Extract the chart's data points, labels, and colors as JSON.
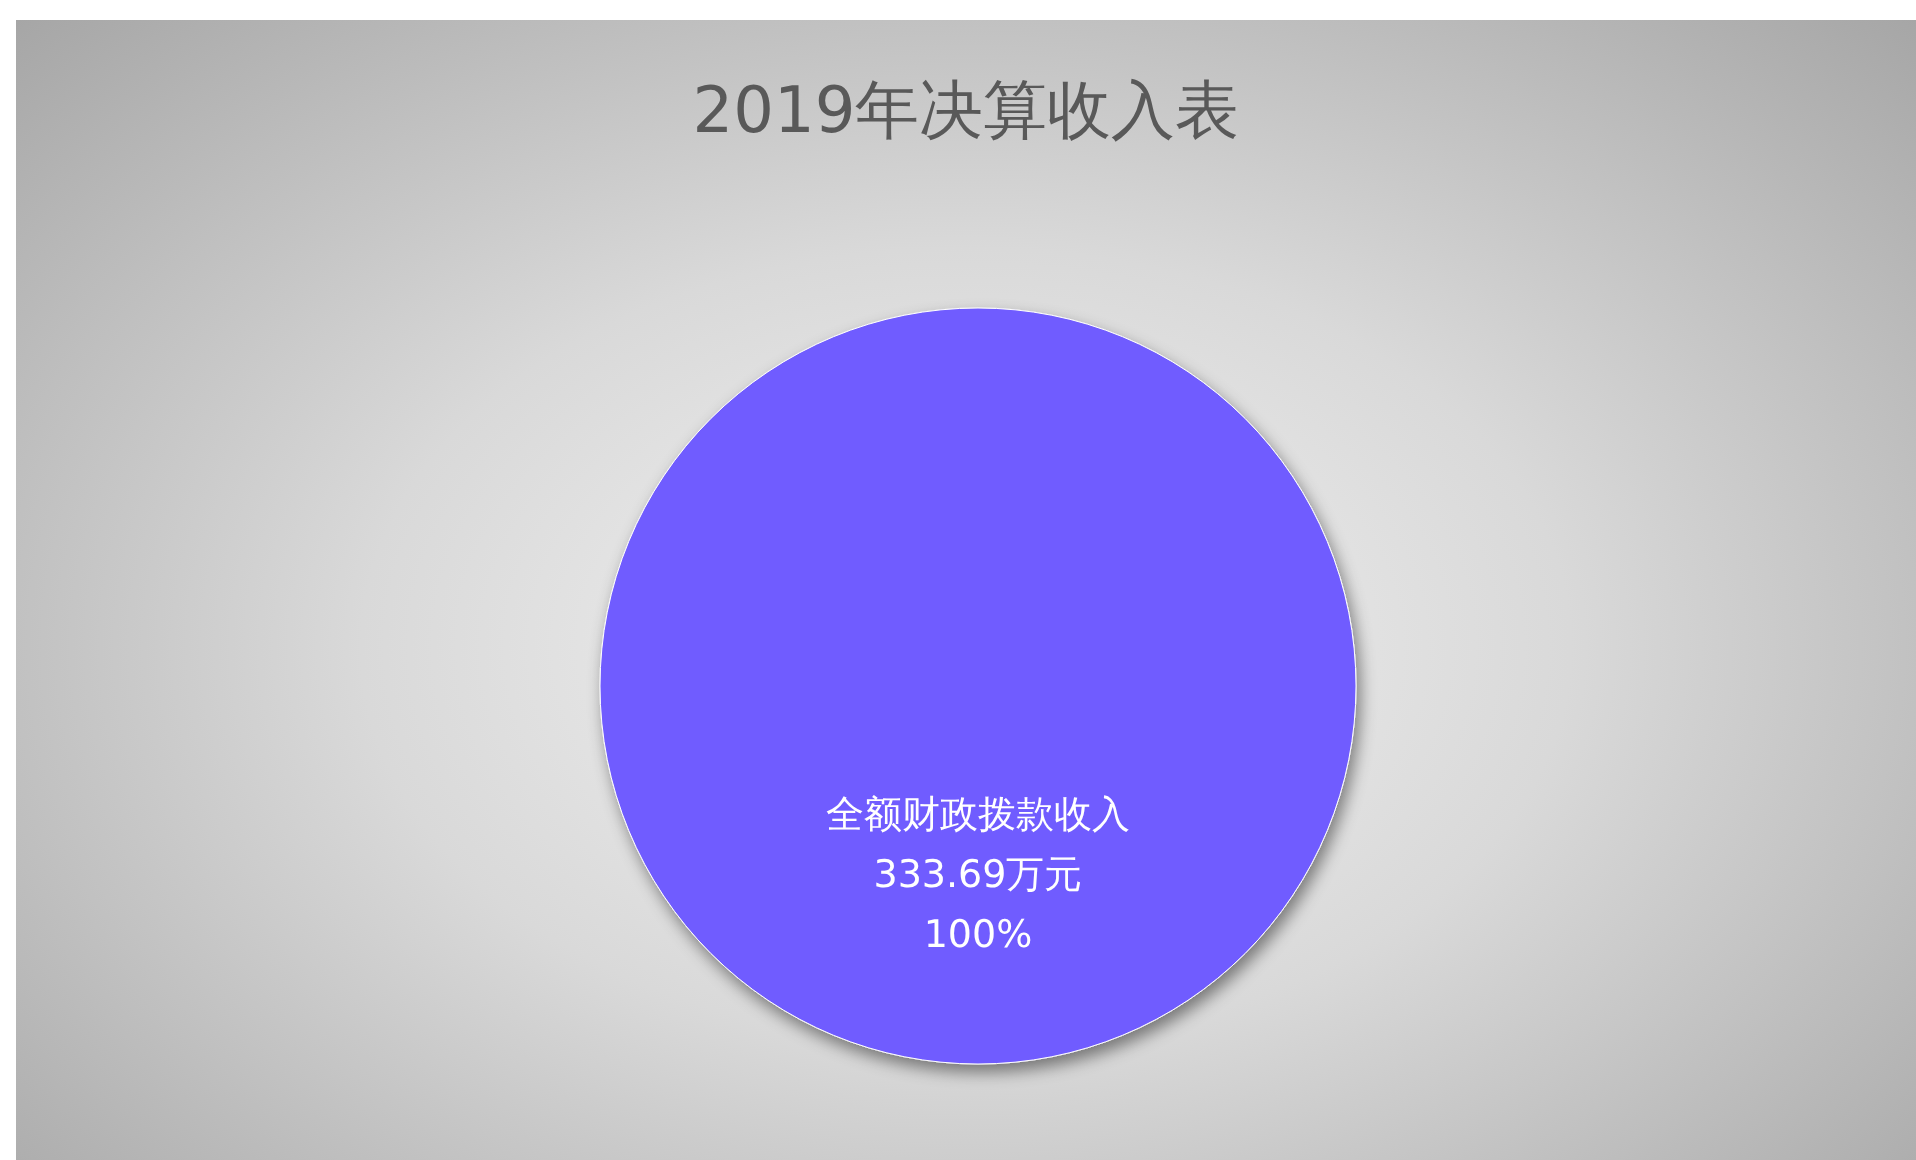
{
  "chart_data": {
    "type": "pie",
    "title": "2019年决算收入表",
    "categories": [
      "全额财政拨款收入333.69万元"
    ],
    "values": [
      100
    ],
    "colors": [
      "#705cff"
    ],
    "value_labels": [
      "100%"
    ]
  }
}
